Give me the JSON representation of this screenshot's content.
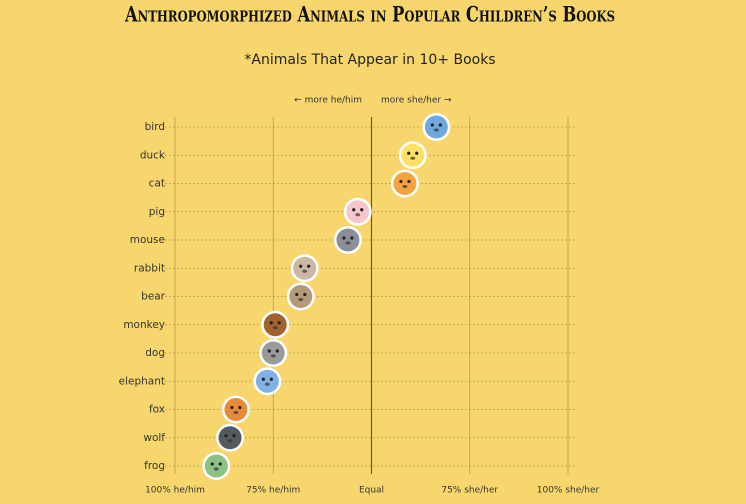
{
  "chart_data": {
    "type": "dot",
    "title": "Anthropomorphized Animals in Popular Children’s Books",
    "subtitle": "*Animals That Appear in 10+ Books",
    "annotations": [
      "← more he/him",
      "more she/her →"
    ],
    "categories": [
      "bird",
      "duck",
      "cat",
      "pig",
      "mouse",
      "rabbit",
      "bear",
      "monkey",
      "dog",
      "elephant",
      "fox",
      "wolf",
      "frog"
    ],
    "values": [
      33,
      21,
      17,
      -7,
      -12,
      -34,
      -36,
      -49,
      -50,
      -53,
      -69,
      -72,
      -79
    ],
    "colors": [
      "#6fa8dc",
      "#ffe066",
      "#f4a340",
      "#f7c6cc",
      "#8a8f99",
      "#c9b8a3",
      "#b59a7a",
      "#a0632f",
      "#9a9a9a",
      "#7fb2e5",
      "#e8893a",
      "#555a60",
      "#8cc084"
    ],
    "xlim": [
      -100,
      100
    ],
    "xticks": [
      {
        "value": -100,
        "label": "100% he/him"
      },
      {
        "value": -50,
        "label": "75% he/him"
      },
      {
        "value": 0,
        "label": "Equal"
      },
      {
        "value": 50,
        "label": "75% she/her"
      },
      {
        "value": 100,
        "label": "100% she/her"
      }
    ],
    "grid": true
  }
}
